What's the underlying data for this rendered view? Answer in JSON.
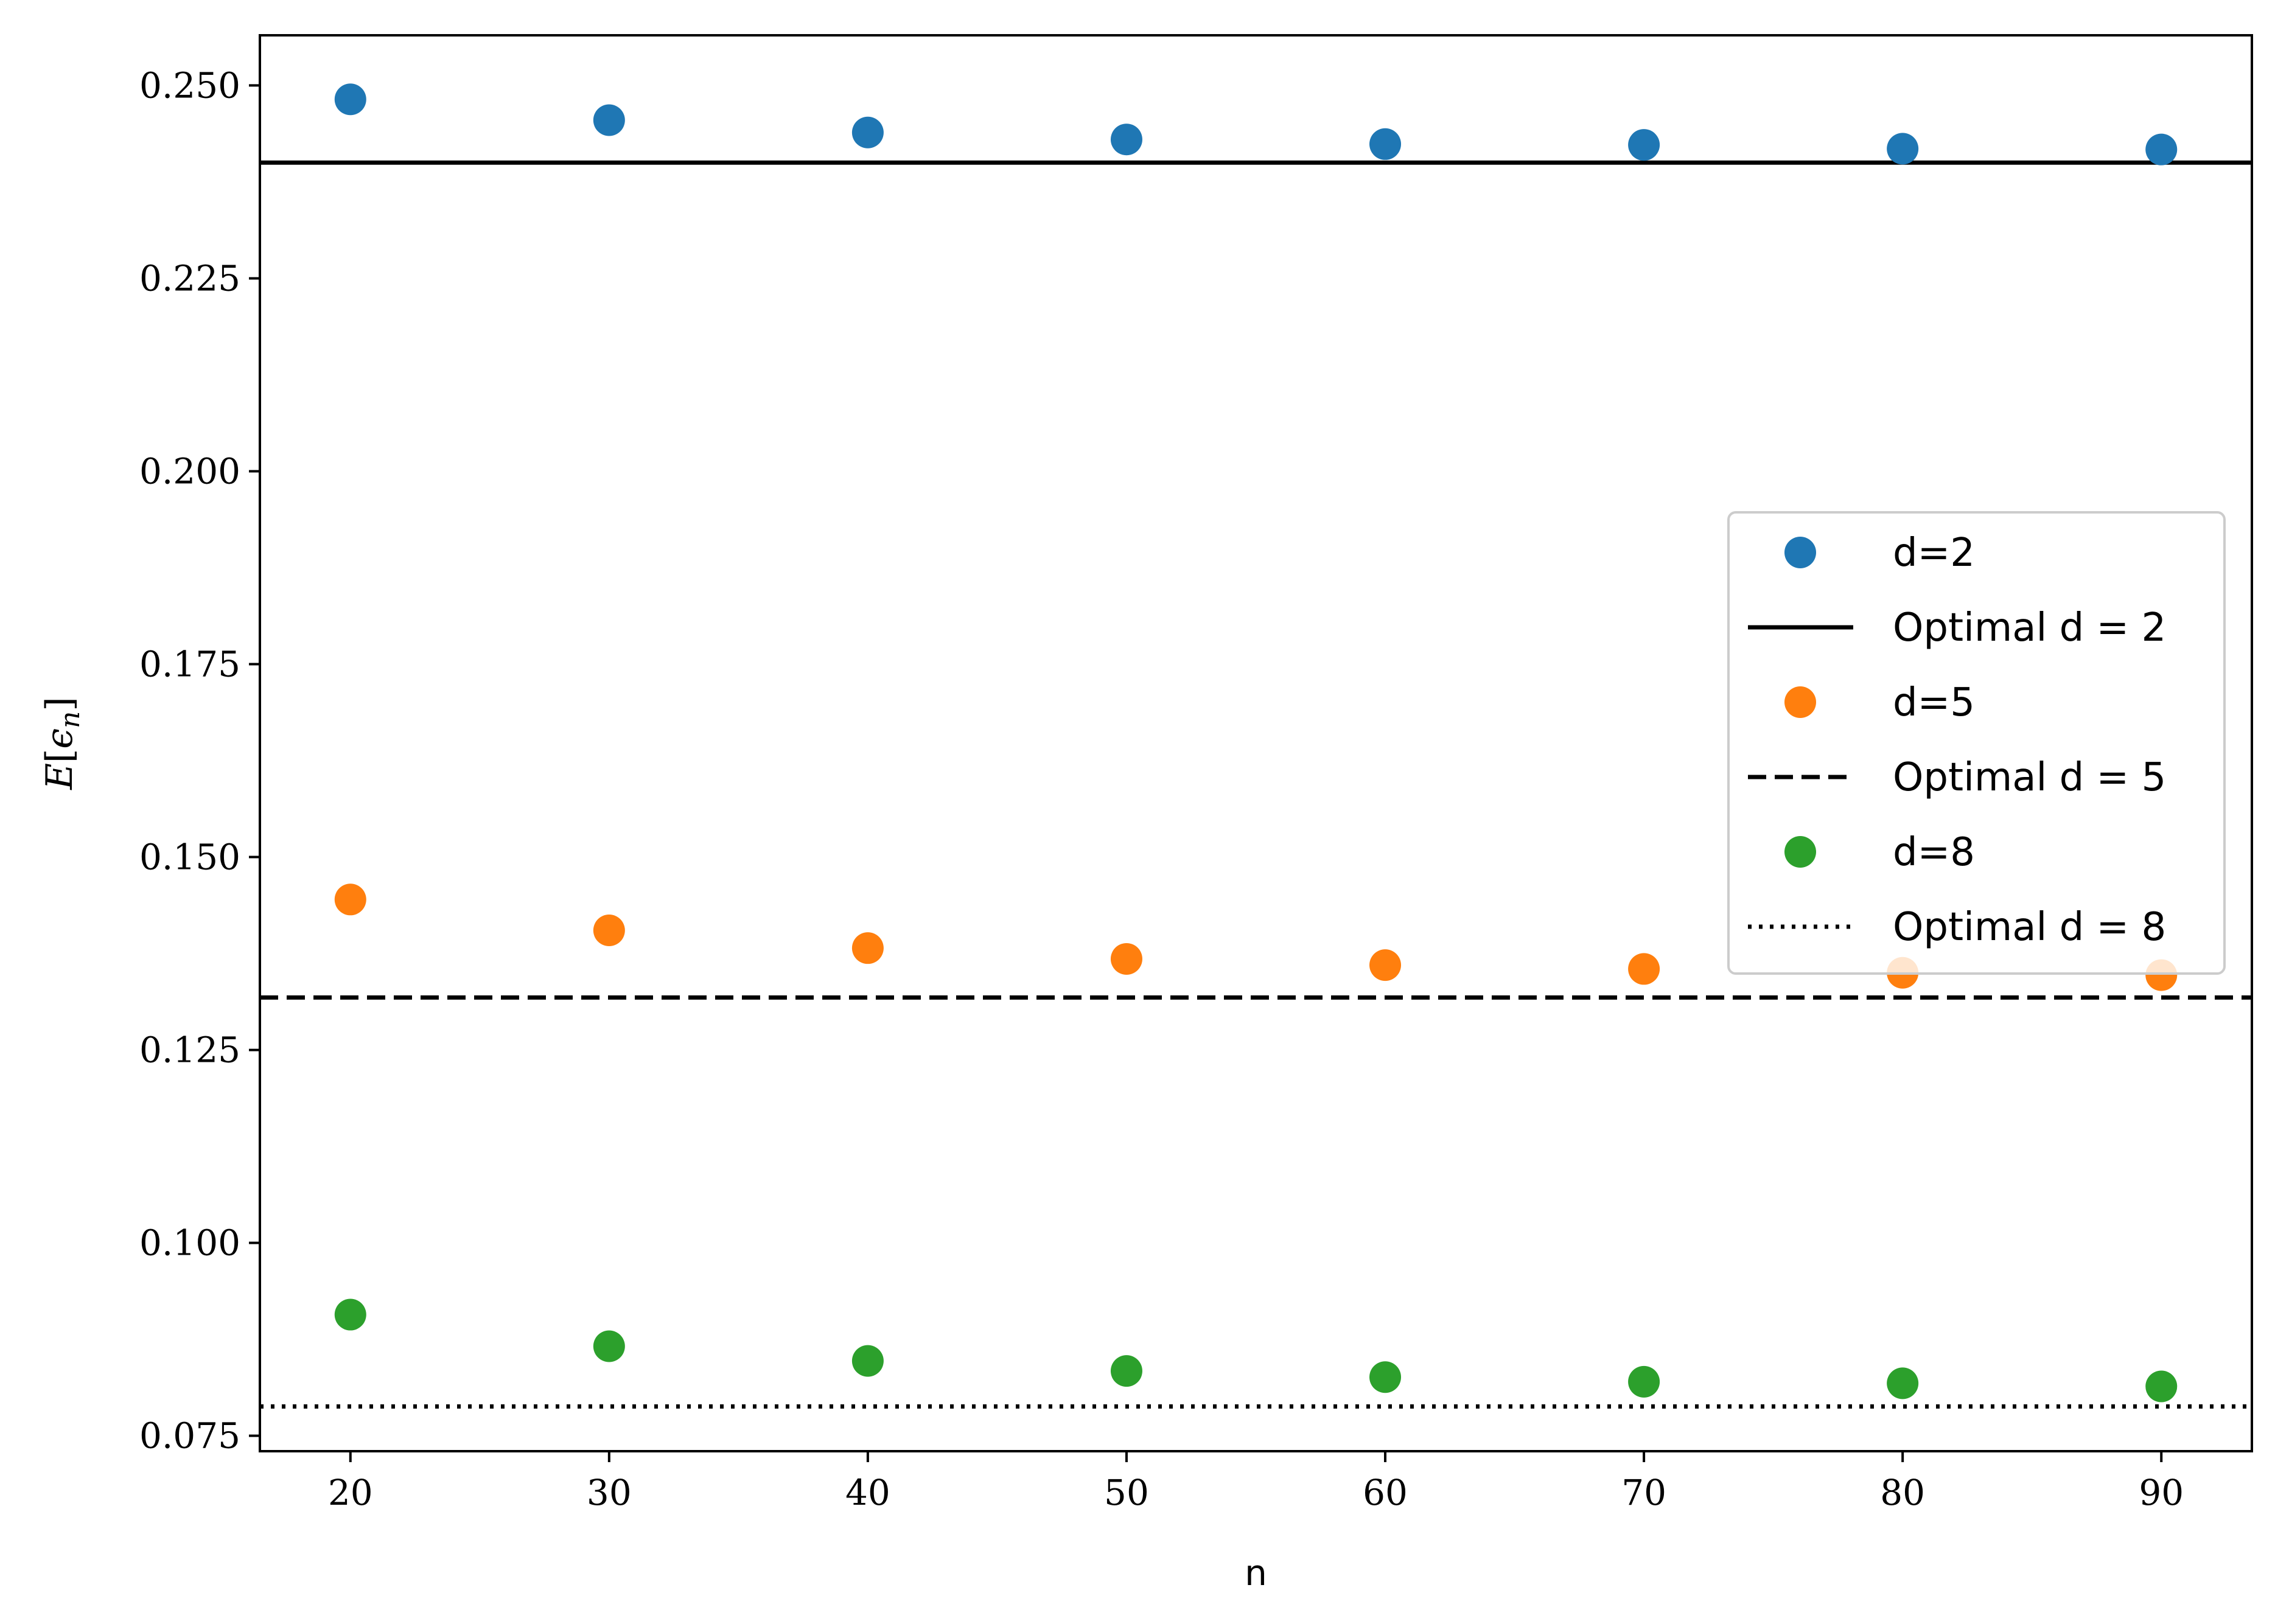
{
  "chart_data": {
    "type": "scatter",
    "title": "",
    "xlabel": "n",
    "ylabel": "E[ϵn]",
    "ylabel_parts": {
      "base": "E",
      "open": "[",
      "eps": "ϵ",
      "sub": "n",
      "close": "]"
    },
    "xlim": [
      16.5,
      93.5
    ],
    "ylim": [
      0.073,
      0.2565
    ],
    "xticks": [
      20,
      30,
      40,
      50,
      60,
      70,
      80,
      90
    ],
    "xtick_labels": [
      "20",
      "30",
      "40",
      "50",
      "60",
      "70",
      "80",
      "90"
    ],
    "yticks": [
      0.075,
      0.1,
      0.125,
      0.15,
      0.175,
      0.2,
      0.225,
      0.25
    ],
    "ytick_labels": [
      "0.075",
      "0.100",
      "0.125",
      "0.150",
      "0.175",
      "0.200",
      "0.225",
      "0.250"
    ],
    "grid": false,
    "legend_position": "center-right",
    "x": [
      20,
      30,
      40,
      50,
      60,
      70,
      80,
      90
    ],
    "series": [
      {
        "name": "d=2",
        "kind": "points",
        "color": "#1f77b4",
        "values": [
          0.2482,
          0.2455,
          0.2439,
          0.243,
          0.2424,
          0.2423,
          0.2418,
          0.2417
        ]
      },
      {
        "name": "Optimal d = 2",
        "kind": "hline",
        "color": "#000000",
        "style": "solid",
        "value": 0.24
      },
      {
        "name": "d=5",
        "kind": "points",
        "color": "#ff7f0e",
        "values": [
          0.1445,
          0.1405,
          0.1382,
          0.1368,
          0.136,
          0.1355,
          0.135,
          0.1347
        ]
      },
      {
        "name": "Optimal d = 5",
        "kind": "hline",
        "color": "#000000",
        "style": "dashed",
        "value": 0.1318
      },
      {
        "name": "d=8",
        "kind": "points",
        "color": "#2ca02c",
        "values": [
          0.0907,
          0.0866,
          0.0847,
          0.0834,
          0.0826,
          0.082,
          0.0818,
          0.0814
        ]
      },
      {
        "name": "Optimal d = 8",
        "kind": "hline",
        "color": "#000000",
        "style": "dotted",
        "value": 0.0788
      }
    ]
  }
}
